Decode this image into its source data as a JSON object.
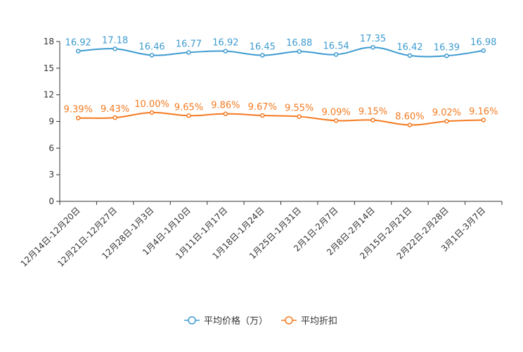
{
  "chart_data": {
    "type": "line",
    "categories": [
      "12月14日-12月20日",
      "12月21日-12月27日",
      "12月28日-1月3日",
      "1月4日-1月10日",
      "1月11日-1月17日",
      "1月18日-1月24日",
      "1月25日-1月31日",
      "2月1日-2月7日",
      "2月8日-2月14日",
      "2月15日-2月21日",
      "2月22日-2月28日",
      "3月1日-3月7日"
    ],
    "y_ticks": [
      0,
      3,
      6,
      9,
      12,
      15,
      18
    ],
    "ylim": [
      0,
      18
    ],
    "series": [
      {
        "name": "平均价格（万）",
        "color": "#3e9bd0",
        "values": [
          16.92,
          17.18,
          16.46,
          16.77,
          16.92,
          16.45,
          16.88,
          16.54,
          17.35,
          16.42,
          16.39,
          16.98
        ],
        "labels": [
          "16.92",
          "17.18",
          "16.46",
          "16.77",
          "16.92",
          "16.45",
          "16.88",
          "16.54",
          "17.35",
          "16.42",
          "16.39",
          "16.98"
        ]
      },
      {
        "name": "平均折扣",
        "color": "#f47a20",
        "values": [
          9.39,
          9.43,
          10.0,
          9.65,
          9.86,
          9.67,
          9.55,
          9.09,
          9.15,
          8.6,
          9.02,
          9.16
        ],
        "labels": [
          "9.39%",
          "9.43%",
          "10.00%",
          "9.65%",
          "9.86%",
          "9.67%",
          "9.55%",
          "9.09%",
          "9.15%",
          "8.60%",
          "9.02%",
          "9.16%"
        ]
      }
    ],
    "legend_position": "bottom-center",
    "grid": false
  }
}
